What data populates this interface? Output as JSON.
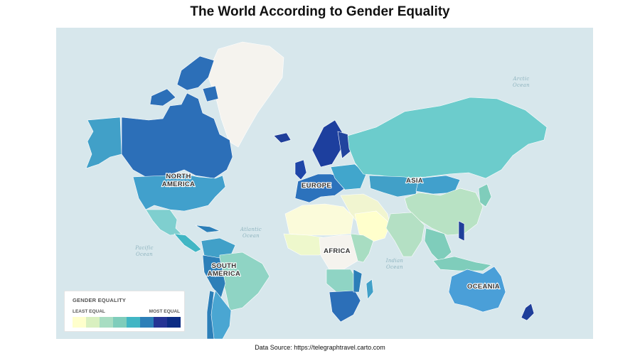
{
  "title": "The World According to Gender Equality",
  "source": "Data Source: https://telegraphtravel.carto.com",
  "legend": {
    "title": "GENDER EQUALITY",
    "low_label": "LEAST EQUAL",
    "high_label": "MOST EQUAL",
    "colors": [
      "#ffffcc",
      "#d9f0c0",
      "#a8ddc2",
      "#7fcdbb",
      "#41b6c4",
      "#2c7fb8",
      "#253494",
      "#0c2c84"
    ]
  },
  "regions": {
    "north_america": [
      "NORTH",
      "AMERICA"
    ],
    "south_america": [
      "SOUTH",
      "AMERICA"
    ],
    "europe": "EUROPE",
    "africa": "AFRICA",
    "asia": "ASIA",
    "oceania": "OCEANIA"
  },
  "oceans": {
    "atlantic": [
      "Atlantic",
      "Ocean"
    ],
    "pacific": [
      "Pacific",
      "Ocean"
    ],
    "indian": [
      "Indian",
      "Ocean"
    ],
    "arctic": [
      "Arctic",
      "Ocean"
    ]
  }
}
